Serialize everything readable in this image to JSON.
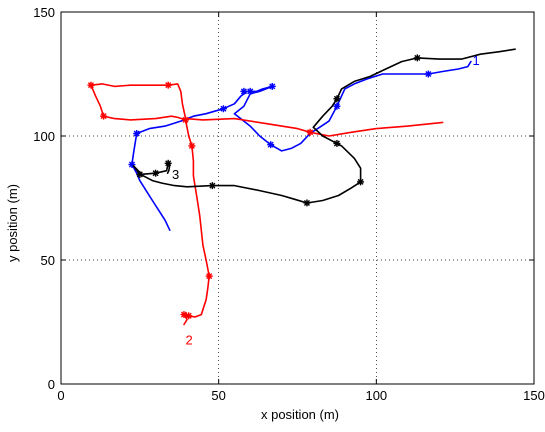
{
  "chart_data": {
    "type": "line",
    "xlabel": "x position (m)",
    "ylabel": "y position (m)",
    "xlim": [
      0,
      150
    ],
    "ylim": [
      0,
      150
    ],
    "xticks": [
      0,
      50,
      100,
      150
    ],
    "yticks": [
      0,
      50,
      100,
      150
    ],
    "grid": true,
    "series": [
      {
        "name": "1",
        "color": "#0000ff",
        "path": [
          [
            34.5,
            62
          ],
          [
            33,
            66
          ],
          [
            31,
            70
          ],
          [
            29,
            74
          ],
          [
            27,
            78
          ],
          [
            25,
            82
          ],
          [
            24,
            85
          ],
          [
            22.5,
            88.5
          ],
          [
            23,
            93
          ],
          [
            23.5,
            97
          ],
          [
            24,
            101
          ],
          [
            28,
            103
          ],
          [
            33,
            104
          ],
          [
            38,
            106
          ],
          [
            42,
            108
          ],
          [
            46,
            109
          ],
          [
            51.5,
            111
          ],
          [
            55,
            113
          ],
          [
            57,
            116
          ],
          [
            59,
            118
          ],
          [
            62,
            118
          ],
          [
            64,
            119
          ],
          [
            67,
            120
          ],
          [
            63,
            118
          ],
          [
            60,
            117
          ],
          [
            58,
            112
          ],
          [
            55,
            109
          ],
          [
            57,
            107
          ],
          [
            60,
            104
          ],
          [
            63,
            100
          ],
          [
            66.5,
            96.5
          ],
          [
            70,
            94
          ],
          [
            73,
            95
          ],
          [
            76,
            97
          ],
          [
            79,
            101
          ],
          [
            82,
            103.5
          ],
          [
            85,
            106
          ],
          [
            87.5,
            112
          ],
          [
            90,
            119
          ],
          [
            93,
            121
          ],
          [
            97,
            123
          ],
          [
            102,
            125
          ],
          [
            110,
            125
          ],
          [
            116.5,
            125
          ],
          [
            121,
            126
          ],
          [
            126,
            127
          ],
          [
            129,
            128
          ],
          [
            130,
            130
          ]
        ],
        "markers": [
          [
            22.5,
            88.5
          ],
          [
            24,
            101
          ],
          [
            51.5,
            111
          ],
          [
            58,
            118
          ],
          [
            60,
            118
          ],
          [
            67,
            120
          ],
          [
            66.5,
            96.5
          ],
          [
            87.5,
            112
          ],
          [
            116.5,
            125
          ]
        ],
        "label": {
          "text": "1",
          "x": 130.5,
          "y": 130.3
        }
      },
      {
        "name": "2",
        "color": "#ff0000",
        "path": [
          [
            39,
            24
          ],
          [
            40,
            26
          ],
          [
            39,
            28
          ],
          [
            40.5,
            27.5
          ],
          [
            42.5,
            27
          ],
          [
            44.5,
            28
          ],
          [
            46,
            34
          ],
          [
            46.5,
            38
          ],
          [
            47,
            43.5
          ],
          [
            46,
            50
          ],
          [
            45,
            56
          ],
          [
            44.5,
            62
          ],
          [
            44,
            68
          ],
          [
            43,
            76
          ],
          [
            42,
            84
          ],
          [
            42,
            90
          ],
          [
            41.5,
            96
          ],
          [
            40.5,
            100
          ],
          [
            39.5,
            106.5
          ],
          [
            37,
            107.5
          ],
          [
            35,
            108
          ],
          [
            30,
            107
          ],
          [
            22,
            106.5
          ],
          [
            17,
            107
          ],
          [
            13.5,
            108
          ],
          [
            12.5,
            112
          ],
          [
            11,
            116
          ],
          [
            9.5,
            120.5
          ],
          [
            13,
            121
          ],
          [
            17,
            120
          ],
          [
            22,
            120.5
          ],
          [
            28,
            120.5
          ],
          [
            34,
            120.5
          ],
          [
            37,
            121
          ],
          [
            38,
            118
          ],
          [
            38.5,
            113
          ],
          [
            39.5,
            107
          ],
          [
            45,
            106.5
          ],
          [
            55,
            107
          ],
          [
            65,
            105
          ],
          [
            75,
            103
          ],
          [
            79,
            101.5
          ],
          [
            85,
            100
          ],
          [
            92,
            101.5
          ],
          [
            100,
            103
          ],
          [
            110,
            104
          ],
          [
            121,
            105.5
          ]
        ],
        "markers": [
          [
            39,
            28
          ],
          [
            40.5,
            27.5
          ],
          [
            47,
            43.5
          ],
          [
            41.5,
            96
          ],
          [
            39.5,
            106.5
          ],
          [
            13.5,
            108
          ],
          [
            9.5,
            120.5
          ],
          [
            34,
            120.5
          ],
          [
            79,
            101.5
          ]
        ],
        "label": {
          "text": "2",
          "x": 39.5,
          "y": 17.5
        }
      },
      {
        "name": "3",
        "color": "#000000",
        "path": [
          [
            33.8,
            85
          ],
          [
            34.2,
            86
          ],
          [
            34.5,
            88.5
          ],
          [
            34,
            89
          ],
          [
            33.5,
            86
          ],
          [
            30,
            85
          ],
          [
            25,
            84.5
          ],
          [
            23,
            88
          ],
          [
            26,
            84
          ],
          [
            29,
            82
          ],
          [
            32,
            81
          ],
          [
            36,
            80
          ],
          [
            40,
            79.5
          ],
          [
            48,
            80
          ],
          [
            55,
            80
          ],
          [
            63,
            78
          ],
          [
            70,
            76
          ],
          [
            74,
            74.5
          ],
          [
            78,
            73
          ],
          [
            83,
            74
          ],
          [
            88,
            76
          ],
          [
            92,
            79
          ],
          [
            95,
            81.5
          ],
          [
            95,
            87
          ],
          [
            93,
            91
          ],
          [
            89,
            96
          ],
          [
            87.5,
            97
          ],
          [
            83,
            100
          ],
          [
            80,
            103.5
          ],
          [
            83,
            108
          ],
          [
            86,
            112
          ],
          [
            87.5,
            115
          ],
          [
            89,
            119
          ],
          [
            93,
            122
          ],
          [
            98,
            124
          ],
          [
            103,
            127
          ],
          [
            108,
            130
          ],
          [
            113,
            131.5
          ],
          [
            120,
            131
          ],
          [
            127,
            131
          ],
          [
            133,
            133
          ],
          [
            139,
            134
          ],
          [
            144,
            135
          ]
        ],
        "markers": [
          [
            34,
            89
          ],
          [
            30,
            85
          ],
          [
            25,
            84.5
          ],
          [
            48,
            80
          ],
          [
            78,
            73
          ],
          [
            95,
            81.5
          ],
          [
            87.5,
            97
          ],
          [
            87.5,
            115
          ],
          [
            113,
            131.5
          ]
        ],
        "label": {
          "text": "3",
          "x": 35.2,
          "y": 84.2
        }
      }
    ]
  }
}
